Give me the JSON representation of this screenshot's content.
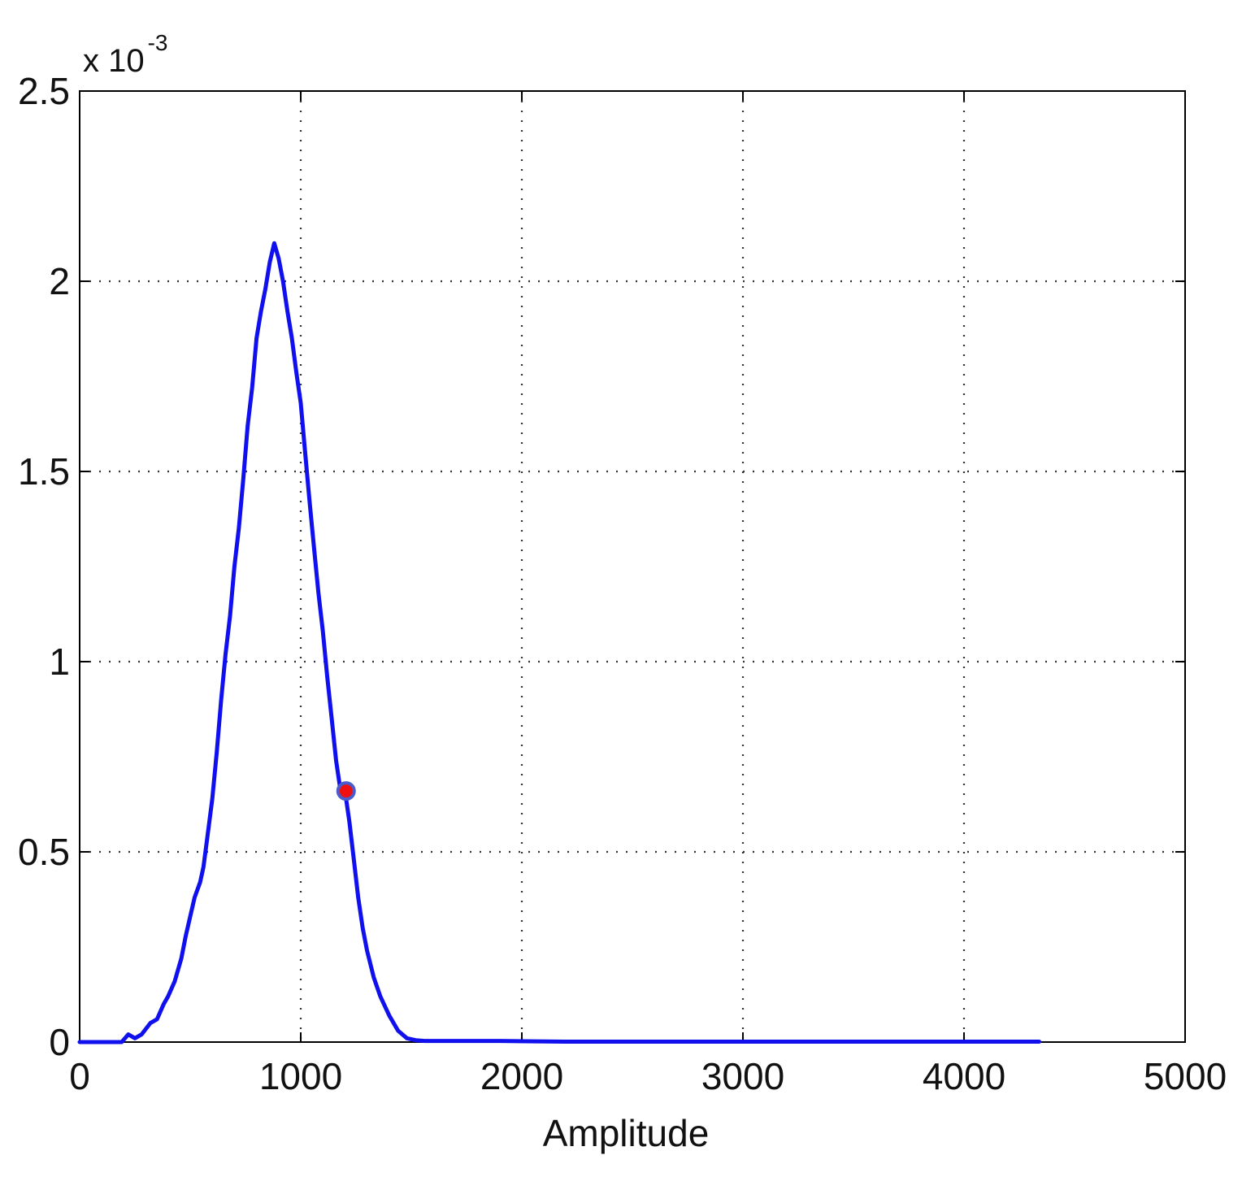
{
  "chart_data": {
    "type": "line",
    "title": "",
    "xlabel": "Amplitude",
    "ylabel": "",
    "y_multiplier": {
      "base": "x 10",
      "exponent": "-3"
    },
    "xlim": [
      0,
      5000
    ],
    "ylim": [
      0,
      2.5
    ],
    "x_ticks": [
      0,
      1000,
      2000,
      3000,
      4000,
      5000
    ],
    "x_tick_labels": [
      "0",
      "1000",
      "2000",
      "3000",
      "4000",
      "5000"
    ],
    "y_ticks": [
      0,
      0.5,
      1,
      1.5,
      2,
      2.5
    ],
    "y_tick_labels": [
      "0",
      "0.5",
      "1",
      "1.5",
      "2",
      "2.5"
    ],
    "grid": true,
    "grid_style": "dotted",
    "series": [
      {
        "color": "#1010ee",
        "x": [
          0,
          100,
          190,
          220,
          250,
          280,
          320,
          350,
          380,
          400,
          430,
          460,
          480,
          500,
          520,
          545,
          560,
          580,
          600,
          620,
          640,
          660,
          680,
          700,
          720,
          740,
          760,
          780,
          800,
          820,
          840,
          860,
          880,
          900,
          920,
          940,
          960,
          980,
          1000,
          1020,
          1040,
          1060,
          1080,
          1100,
          1120,
          1140,
          1160,
          1180,
          1200,
          1220,
          1240,
          1260,
          1280,
          1300,
          1330,
          1360,
          1400,
          1440,
          1480,
          1520,
          1560,
          1700,
          1900,
          2200,
          3000,
          3500,
          4000,
          4340
        ],
        "y": [
          0,
          0,
          0,
          0.02,
          0.01,
          0.02,
          0.05,
          0.06,
          0.1,
          0.12,
          0.16,
          0.22,
          0.28,
          0.33,
          0.38,
          0.42,
          0.46,
          0.55,
          0.64,
          0.76,
          0.9,
          1.02,
          1.12,
          1.25,
          1.35,
          1.48,
          1.62,
          1.72,
          1.85,
          1.92,
          1.98,
          2.05,
          2.1,
          2.06,
          2.0,
          1.92,
          1.85,
          1.76,
          1.68,
          1.55,
          1.42,
          1.3,
          1.18,
          1.08,
          0.96,
          0.85,
          0.74,
          0.66,
          0.66,
          0.58,
          0.48,
          0.38,
          0.3,
          0.24,
          0.17,
          0.12,
          0.07,
          0.03,
          0.01,
          0.005,
          0.003,
          0.003,
          0.003,
          0.001,
          0.001,
          0.001,
          0.001,
          0.001
        ]
      }
    ],
    "markers": [
      {
        "x": 1205,
        "y": 0.66,
        "fill": "#ee1111",
        "edge": "#4a5ccc"
      }
    ]
  }
}
